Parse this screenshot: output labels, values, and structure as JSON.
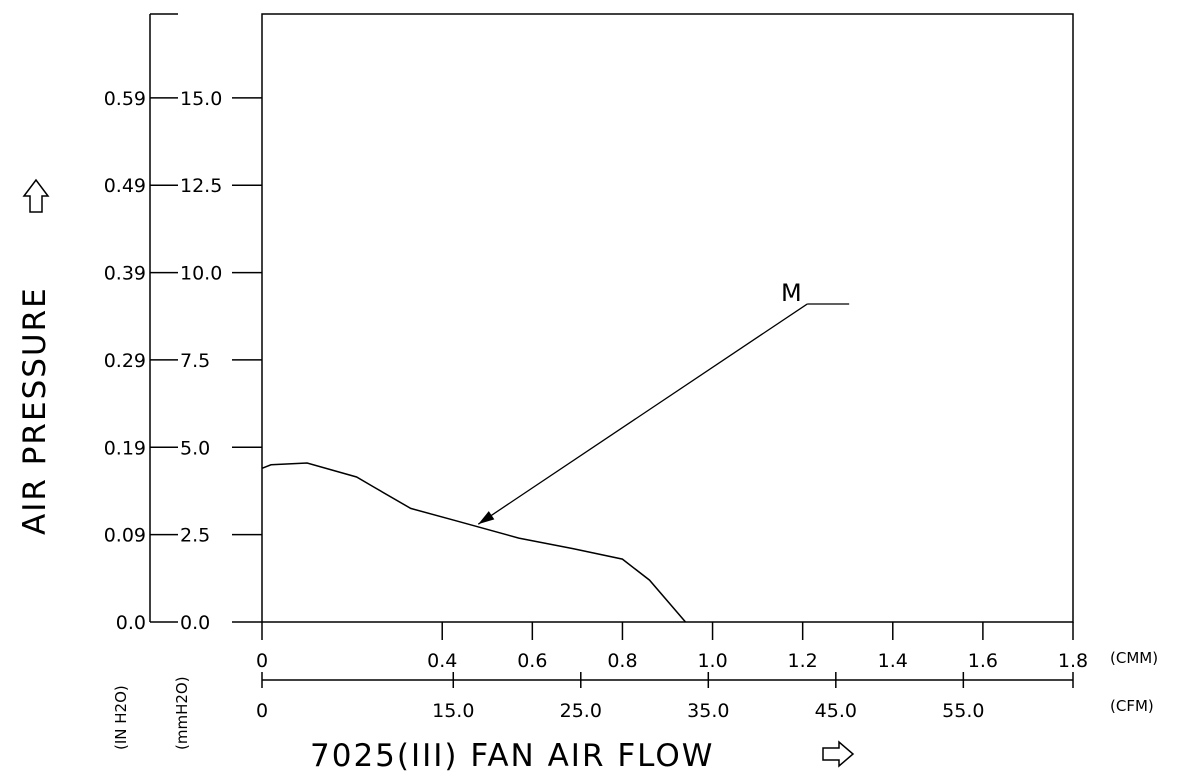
{
  "chart_data": {
    "type": "line",
    "xlabel": "7025(III) FAN AIR FLOW",
    "ylabel": "AIR PRESSURE",
    "grid": false,
    "x_primary": {
      "unit": "(CMM)",
      "range": [
        0,
        1.8
      ],
      "ticks": [
        {
          "value": 0,
          "label": "0"
        },
        {
          "value": 0.4,
          "label": "0.4"
        },
        {
          "value": 0.6,
          "label": "0.6"
        },
        {
          "value": 0.8,
          "label": "0.8"
        },
        {
          "value": 1.0,
          "label": "1.0"
        },
        {
          "value": 1.2,
          "label": "1.2"
        },
        {
          "value": 1.4,
          "label": "1.4"
        },
        {
          "value": 1.6,
          "label": "1.6"
        },
        {
          "value": 1.8,
          "label": "1.8"
        }
      ]
    },
    "x_secondary": {
      "unit": "(CFM)",
      "range": [
        0,
        63.6
      ],
      "ticks": [
        {
          "value": 0,
          "label": "0"
        },
        {
          "value": 15.0,
          "label": "15.0"
        },
        {
          "value": 25.0,
          "label": "25.0"
        },
        {
          "value": 35.0,
          "label": "35.0"
        },
        {
          "value": 45.0,
          "label": "45.0"
        },
        {
          "value": 55.0,
          "label": "55.0"
        }
      ]
    },
    "y_primary": {
      "unit": "(mmH2O)",
      "range": [
        0,
        17.4
      ],
      "ticks": [
        {
          "value": 0,
          "label": "0.0"
        },
        {
          "value": 2.5,
          "label": "2.5"
        },
        {
          "value": 5.0,
          "label": "5.0"
        },
        {
          "value": 7.5,
          "label": "7.5"
        },
        {
          "value": 10.0,
          "label": "10.0"
        },
        {
          "value": 12.5,
          "label": "12.5"
        },
        {
          "value": 15.0,
          "label": "15.0"
        }
      ]
    },
    "y_secondary": {
      "unit": "(IN H2O)",
      "ticks": [
        {
          "value": 0,
          "label": "0.0"
        },
        {
          "value": 2.5,
          "label": "0.09"
        },
        {
          "value": 5.0,
          "label": "0.19"
        },
        {
          "value": 7.5,
          "label": "0.29"
        },
        {
          "value": 10.0,
          "label": "0.39"
        },
        {
          "value": 12.5,
          "label": "0.49"
        },
        {
          "value": 15.0,
          "label": "0.59"
        }
      ]
    },
    "series": [
      {
        "name": "M",
        "x": [
          0,
          0.02,
          0.1,
          0.21,
          0.25,
          0.33,
          0.43,
          0.57,
          0.69,
          0.8,
          0.86,
          0.94
        ],
        "y": [
          4.4,
          4.5,
          4.55,
          4.15,
          3.85,
          3.25,
          2.9,
          2.4,
          2.1,
          1.8,
          1.2,
          0.0
        ]
      }
    ],
    "annotations": [
      {
        "text": "M",
        "point_x": 0.48,
        "point_y": 2.8,
        "label_x": 1.21,
        "label_y": 9.1
      }
    ]
  }
}
